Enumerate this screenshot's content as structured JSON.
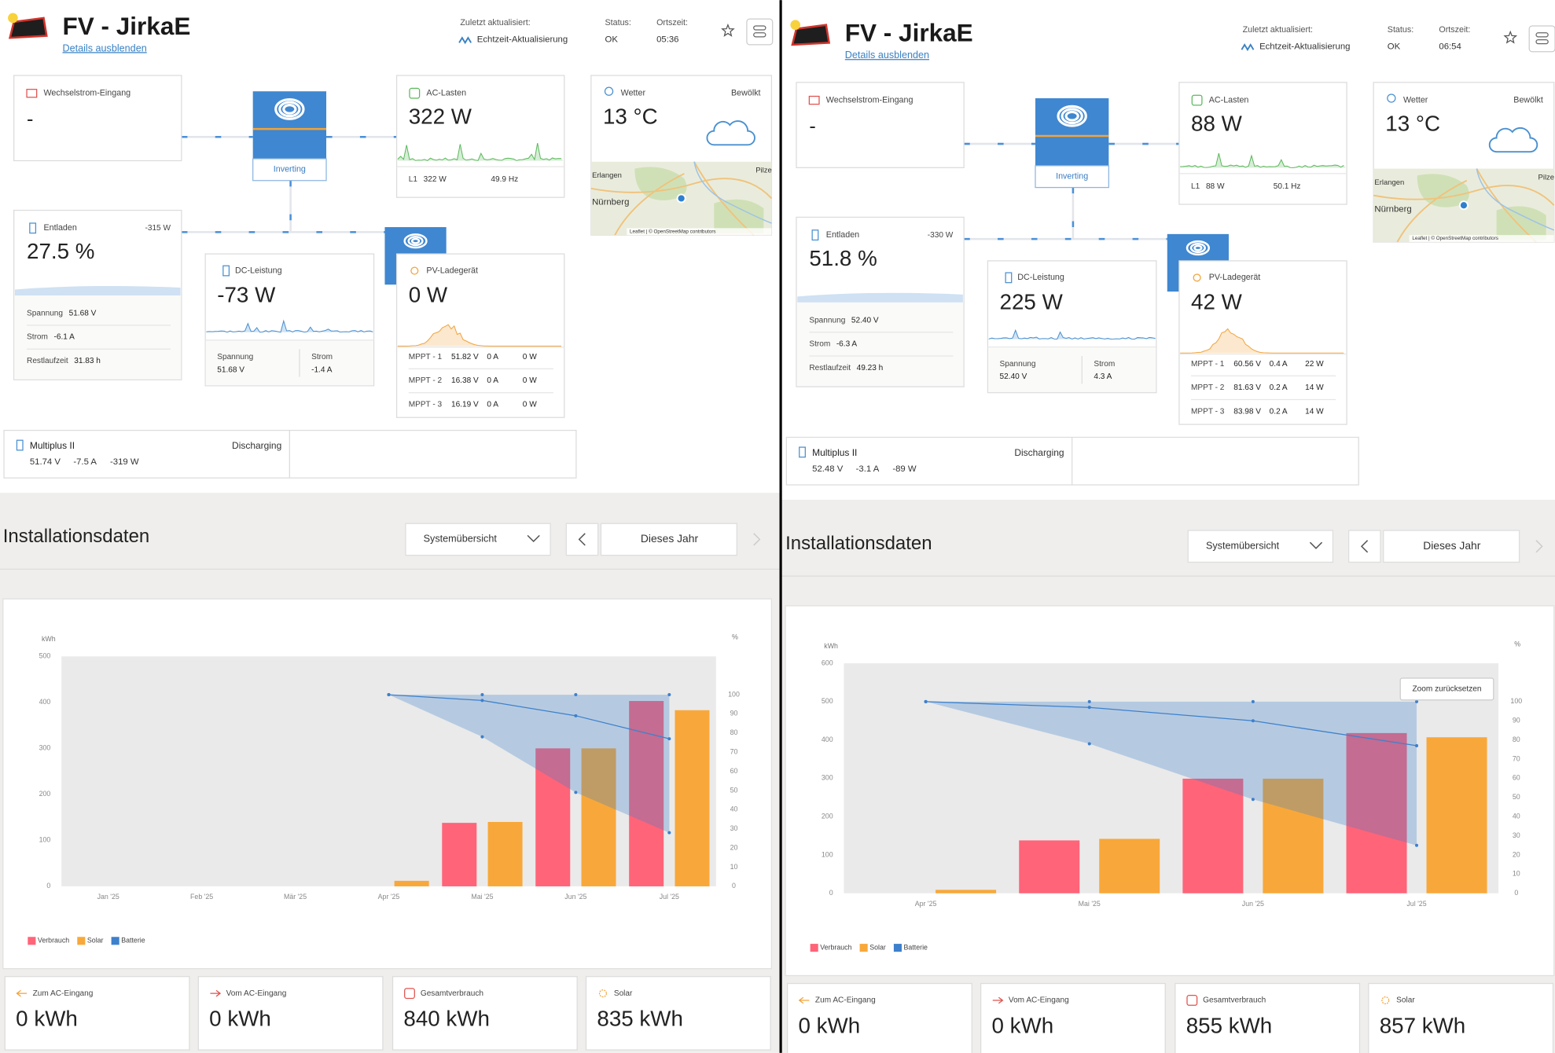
{
  "panels": [
    {
      "header": {
        "title": "FV - JirkaE",
        "details_link": "Details ausblenden",
        "updated_label": "Zuletzt aktualisiert:",
        "updated_value": "Echtzeit-Aktualisierung",
        "status_label": "Status:",
        "status_value": "OK",
        "time_label": "Ortszeit:",
        "time_value": "05:36"
      },
      "ac_input": {
        "label": "Wechselstrom-Eingang",
        "value": "-"
      },
      "inverter": {
        "state": "Inverting"
      },
      "ac_loads": {
        "label": "AC-Lasten",
        "value": "322 W",
        "phase": "L1",
        "phase_power": "322 W",
        "frequency": "49.9 Hz"
      },
      "weather": {
        "label": "Wetter",
        "condition": "Bewölkt",
        "temperature": "13 °C",
        "map_labels": [
          "Erlangen",
          "Nürnberg",
          "Pilze"
        ],
        "attribution": "Leaflet | © OpenStreetMap contributors"
      },
      "battery": {
        "state": "Entladen",
        "power": "-315 W",
        "soc": "27.5 %",
        "rows": [
          {
            "label": "Spannung",
            "value": "51.68 V"
          },
          {
            "label": "Strom",
            "value": "-6.1 A"
          },
          {
            "label": "Restlaufzeit",
            "value": "31.83 h"
          }
        ]
      },
      "dc_power": {
        "label": "DC-Leistung",
        "value": "-73 W",
        "voltage_label": "Spannung",
        "voltage": "51.68 V",
        "current_label": "Strom",
        "current": "-1.4 A"
      },
      "pv_charger": {
        "label": "PV-Ladegerät",
        "value": "0 W",
        "trackers": [
          [
            "MPPT - 1",
            "51.82 V",
            "0 A",
            "0 W"
          ],
          [
            "MPPT - 2",
            "16.38 V",
            "0 A",
            "0 W"
          ],
          [
            "MPPT - 3",
            "16.19 V",
            "0 A",
            "0 W"
          ]
        ]
      },
      "multiplus": {
        "name": "Multiplus II",
        "state": "Discharging",
        "readings": [
          "51.74 V",
          "-7.5 A",
          "-319 W"
        ]
      },
      "section": {
        "title": "Installationsdaten",
        "view": "Systemübersicht",
        "period": "Dieses Jahr"
      },
      "totals": [
        {
          "label": "Zum AC-Eingang",
          "value": "0 kWh"
        },
        {
          "label": "Vom AC-Eingang",
          "value": "0 kWh"
        },
        {
          "label": "Gesamtverbrauch",
          "value": "840 kWh"
        },
        {
          "label": "Solar",
          "value": "835 kWh"
        }
      ]
    },
    {
      "header": {
        "title": "FV - JirkaE",
        "details_link": "Details ausblenden",
        "updated_label": "Zuletzt aktualisiert:",
        "updated_value": "Echtzeit-Aktualisierung",
        "status_label": "Status:",
        "status_value": "OK",
        "time_label": "Ortszeit:",
        "time_value": "06:54"
      },
      "ac_input": {
        "label": "Wechselstrom-Eingang",
        "value": "-"
      },
      "inverter": {
        "state": "Inverting"
      },
      "ac_loads": {
        "label": "AC-Lasten",
        "value": "88 W",
        "phase": "L1",
        "phase_power": "88 W",
        "frequency": "50.1 Hz"
      },
      "weather": {
        "label": "Wetter",
        "condition": "Bewölkt",
        "temperature": "13 °C",
        "map_labels": [
          "Erlangen",
          "Nürnberg",
          "Pilze"
        ],
        "attribution": "Leaflet | © OpenStreetMap contributors"
      },
      "battery": {
        "state": "Entladen",
        "power": "-330 W",
        "soc": "51.8 %",
        "rows": [
          {
            "label": "Spannung",
            "value": "52.40 V"
          },
          {
            "label": "Strom",
            "value": "-6.3 A"
          },
          {
            "label": "Restlaufzeit",
            "value": "49.23 h"
          }
        ]
      },
      "dc_power": {
        "label": "DC-Leistung",
        "value": "225 W",
        "voltage_label": "Spannung",
        "voltage": "52.40 V",
        "current_label": "Strom",
        "current": "4.3 A"
      },
      "pv_charger": {
        "label": "PV-Ladegerät",
        "value": "42 W",
        "trackers": [
          [
            "MPPT - 1",
            "60.56 V",
            "0.4 A",
            "22 W"
          ],
          [
            "MPPT - 2",
            "81.63 V",
            "0.2 A",
            "14 W"
          ],
          [
            "MPPT - 3",
            "83.98 V",
            "0.2 A",
            "14 W"
          ]
        ]
      },
      "multiplus": {
        "name": "Multiplus II",
        "state": "Discharging",
        "readings": [
          "52.48 V",
          "-3.1 A",
          "-89 W"
        ]
      },
      "section": {
        "title": "Installationsdaten",
        "view": "Systemübersicht",
        "period": "Dieses Jahr"
      },
      "totals": [
        {
          "label": "Zum AC-Eingang",
          "value": "0 kWh"
        },
        {
          "label": "Vom AC-Eingang",
          "value": "0 kWh"
        },
        {
          "label": "Gesamtverbrauch",
          "value": "855 kWh"
        },
        {
          "label": "Solar",
          "value": "857 kWh"
        }
      ]
    }
  ],
  "chart_data": [
    {
      "type": "bar",
      "y_label": "kWh",
      "y2_label": "%",
      "categories": [
        "Jan '25",
        "Feb '25",
        "Mär '25",
        "Apr '25",
        "Mai '25",
        "Jun '25",
        "Jul '25"
      ],
      "series": [
        {
          "name": "Verbrauch",
          "color": "#ff6479",
          "values": [
            null,
            null,
            null,
            null,
            138,
            300,
            403
          ]
        },
        {
          "name": "Solar",
          "color": "#f8a83a",
          "values": [
            null,
            null,
            null,
            12,
            140,
            300,
            383
          ]
        },
        {
          "name": "Batterie",
          "type": "area",
          "color": "#3d80cc",
          "axis": "y2",
          "values": [
            null,
            null,
            null,
            100,
            97,
            89,
            77
          ],
          "low": [
            null,
            null,
            null,
            100,
            78,
            49,
            28
          ],
          "high": [
            null,
            null,
            null,
            100,
            100,
            100,
            100
          ]
        }
      ],
      "ylim": [
        0,
        500
      ],
      "yticks": [
        0,
        100,
        200,
        300,
        400,
        500
      ],
      "y2lim": [
        0,
        120
      ],
      "y2ticks": [
        0,
        10,
        20,
        30,
        40,
        50,
        60,
        70,
        80,
        90,
        100
      ],
      "grid": false,
      "legend": "bottom-left"
    },
    {
      "type": "bar",
      "y_label": "kWh",
      "y2_label": "%",
      "zoom_reset": "Zoom zurücksetzen",
      "categories": [
        "Apr '25",
        "Mai '25",
        "Jun '25",
        "Jul '25"
      ],
      "series": [
        {
          "name": "Verbrauch",
          "color": "#ff6479",
          "values": [
            null,
            138,
            299,
            418
          ]
        },
        {
          "name": "Solar",
          "color": "#f8a83a",
          "values": [
            9,
            142,
            299,
            407
          ]
        },
        {
          "name": "Batterie",
          "type": "area",
          "color": "#3d80cc",
          "axis": "y2",
          "values": [
            100,
            97,
            90,
            77
          ],
          "low": [
            100,
            78,
            49,
            25
          ],
          "high": [
            100,
            100,
            100,
            100
          ]
        }
      ],
      "ylim": [
        0,
        600
      ],
      "yticks": [
        0,
        100,
        200,
        300,
        400,
        500,
        600
      ],
      "y2lim": [
        0,
        120
      ],
      "y2ticks": [
        0,
        10,
        20,
        30,
        40,
        50,
        60,
        70,
        80,
        90,
        100
      ],
      "grid": false,
      "legend": "bottom-left"
    }
  ]
}
